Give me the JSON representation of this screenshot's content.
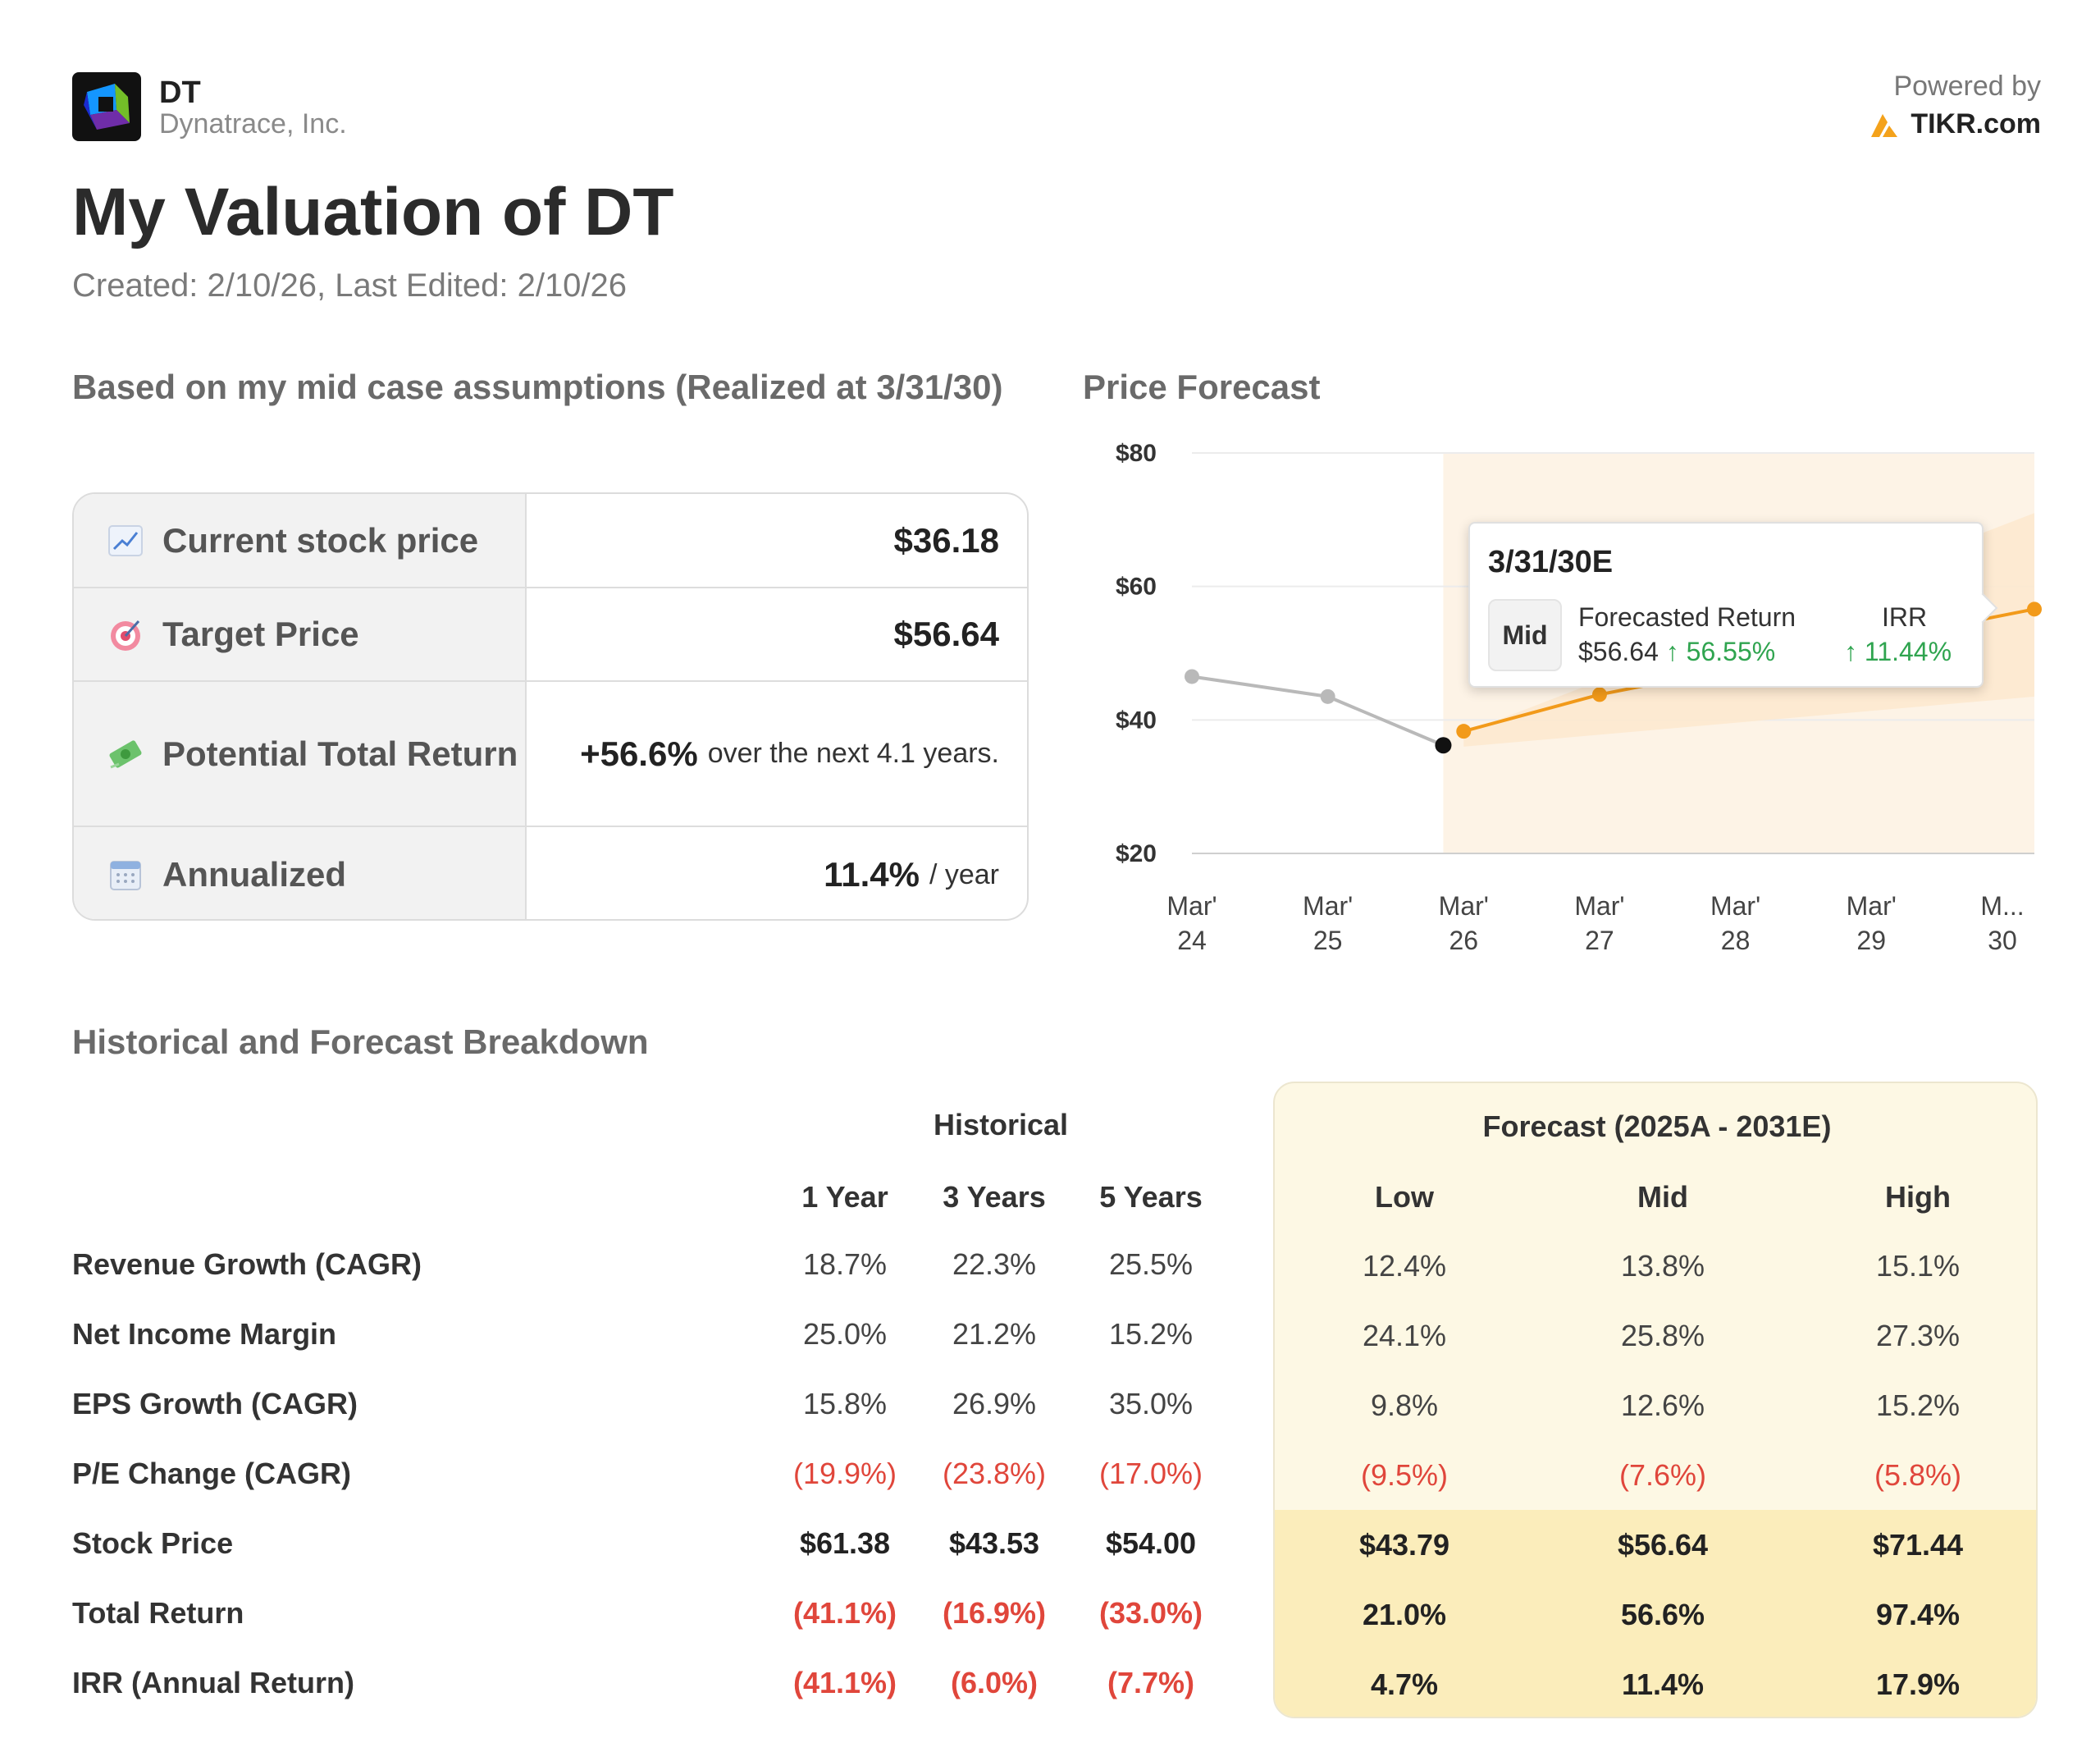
{
  "header": {
    "ticker": "DT",
    "company": "Dynatrace, Inc.",
    "powered_by": "Powered by",
    "brand": "TIKR.com",
    "title": "My Valuation of DT",
    "dates": "Created: 2/10/26, Last Edited: 2/10/26"
  },
  "summary": {
    "section_title": "Based on my mid case assumptions (Realized at 3/31/30)",
    "rows": [
      {
        "icon": "chart-up-icon",
        "label": "Current stock price",
        "value": "$36.18",
        "suffix": ""
      },
      {
        "icon": "target-icon",
        "label": "Target Price",
        "value": "$56.64",
        "suffix": ""
      },
      {
        "icon": "money-icon",
        "label": "Potential Total Return",
        "value": "+56.6%",
        "suffix": "over the next 4.1 years."
      },
      {
        "icon": "calendar-icon",
        "label": "Annualized",
        "value": "11.4%",
        "suffix": "/ year"
      }
    ]
  },
  "forecast_chart": {
    "section_title": "Price Forecast",
    "tooltip": {
      "date": "3/31/30E",
      "pill": "Mid",
      "col1_header": "Forecasted Return",
      "col2_header": "IRR",
      "price": "$56.64",
      "return_arrow": "↑",
      "return_value": "56.55%",
      "irr": "↑ 11.44%"
    }
  },
  "chart_data": {
    "type": "line",
    "title": "Price Forecast",
    "categories": [
      "Mar' 24",
      "Mar' 25",
      "Mar' 26",
      "Mar' 27",
      "Mar' 28",
      "Mar' 29",
      "M... 30"
    ],
    "ytick_labels": [
      "$80",
      "$60",
      "$40",
      "$20"
    ],
    "ylim": [
      20,
      80
    ],
    "yticks": [
      20,
      40,
      60,
      80
    ],
    "xlim": [
      0,
      6.2
    ],
    "series": [
      {
        "name": "Historical",
        "color": "#b9b9b9",
        "x": [
          0,
          1,
          1.85
        ],
        "y": [
          46.5,
          43.5,
          36.2
        ]
      },
      {
        "name": "Mid Forecast",
        "color": "#f29a1a",
        "x": [
          2.0,
          3.0,
          6.2
        ],
        "y": [
          38.3,
          43.8,
          56.6
        ]
      }
    ],
    "current_point": {
      "x": 1.85,
      "y": 36.2
    },
    "band": {
      "color": "#fde9cf",
      "x": [
        2.0,
        6.2
      ],
      "low": [
        36,
        43.5
      ],
      "high": [
        38,
        71
      ]
    },
    "shaded_region_start": 1.85
  },
  "breakdown": {
    "section_title": "Historical and Forecast Breakdown",
    "historical_header": "Historical",
    "forecast_header": "Forecast (2025A - 2031E)",
    "columns": [
      "1 Year",
      "3 Years",
      "5 Years",
      "Low",
      "Mid",
      "High"
    ],
    "rows": [
      {
        "label": "Revenue Growth (CAGR)",
        "values": [
          "18.7%",
          "22.3%",
          "25.5%",
          "12.4%",
          "13.8%",
          "15.1%"
        ]
      },
      {
        "label": "Net Income Margin",
        "values": [
          "25.0%",
          "21.2%",
          "15.2%",
          "24.1%",
          "25.8%",
          "27.3%"
        ]
      },
      {
        "label": "EPS Growth (CAGR)",
        "values": [
          "15.8%",
          "26.9%",
          "35.0%",
          "9.8%",
          "12.6%",
          "15.2%"
        ]
      },
      {
        "label": "P/E Change (CAGR)",
        "values": [
          "(19.9%)",
          "(23.8%)",
          "(17.0%)",
          "(9.5%)",
          "(7.6%)",
          "(5.8%)"
        ]
      },
      {
        "label": "Stock Price",
        "values": [
          "$61.38",
          "$43.53",
          "$54.00",
          "$43.79",
          "$56.64",
          "$71.44"
        ]
      },
      {
        "label": "Total Return",
        "values": [
          "(41.1%)",
          "(16.9%)",
          "(33.0%)",
          "21.0%",
          "56.6%",
          "97.4%"
        ]
      },
      {
        "label": "IRR (Annual Return)",
        "values": [
          "(41.1%)",
          "(6.0%)",
          "(7.7%)",
          "4.7%",
          "11.4%",
          "17.9%"
        ]
      }
    ],
    "negative_color": "#e0463b"
  }
}
